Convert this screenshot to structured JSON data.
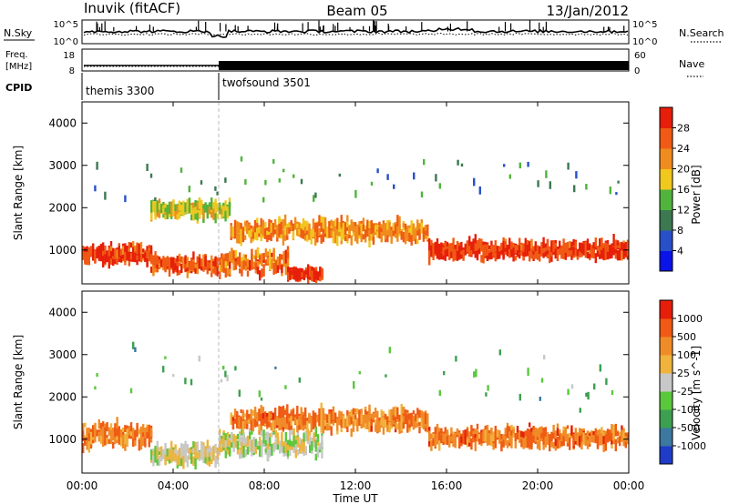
{
  "header": {
    "station": "Inuvik (fitACF)",
    "beam": "Beam 05",
    "date": "13/Jan/2012"
  },
  "sky_panel": {
    "left_label": "N.Sky",
    "right_label": "N.Search",
    "y_ticks": [
      "10^5",
      "10^0"
    ]
  },
  "freq_panel": {
    "left_label_line1": "Freq.",
    "left_label_line2": "[MHz]",
    "right_label": "Nave",
    "left_ticks": [
      "18",
      "8"
    ],
    "right_ticks": [
      "60",
      "0"
    ]
  },
  "cpid": {
    "label": "CPID",
    "segments": [
      {
        "name": "themis 3300",
        "start_hour": 0,
        "end_hour": 6
      },
      {
        "name": "twofsound 3501",
        "start_hour": 6,
        "end_hour": 24
      }
    ]
  },
  "time_axis": {
    "ticks": [
      "00:00",
      "04:00",
      "08:00",
      "12:00",
      "16:00",
      "20:00",
      "00:00"
    ],
    "label": "Time UT"
  },
  "range_axis": {
    "label": "Slant Range [km]",
    "ticks": [
      "1000",
      "2000",
      "3000",
      "4000"
    ]
  },
  "power_scale": {
    "label": "Power [dB]",
    "ticks": [
      "4",
      "8",
      "12",
      "16",
      "20",
      "24",
      "28"
    ],
    "colors": [
      "#0a14e6",
      "#2850c8",
      "#3c7850",
      "#50b43c",
      "#f0c81e",
      "#f08c1e",
      "#f05a14",
      "#e61e0a"
    ]
  },
  "velocity_scale": {
    "label": "Velocity [m s^-1]",
    "ticks": [
      "1000",
      "500",
      "100",
      "25",
      "-25",
      "-100",
      "-500",
      "-1000"
    ],
    "colors": [
      "#1e3cc8",
      "#3c78a0",
      "#3ca050",
      "#5ac83c",
      "#c8c8c8",
      "#f0b43c",
      "#f08c28",
      "#f05a14",
      "#e61e0a"
    ]
  },
  "chart_data": {
    "type": "heatmap",
    "x_range_hours": [
      0,
      24
    ],
    "y_range_km": [
      200,
      4500
    ],
    "power_bands": [
      {
        "start": 0.0,
        "end": 3.0,
        "center_km": 900,
        "width_km": 450,
        "level": 6.5
      },
      {
        "start": 3.0,
        "end": 6.0,
        "center_km": 650,
        "width_km": 350,
        "level": 6.2
      },
      {
        "start": 6.0,
        "end": 9.0,
        "center_km": 700,
        "width_km": 600,
        "level": 5.5
      },
      {
        "start": 9.0,
        "end": 10.5,
        "center_km": 420,
        "width_km": 250,
        "level": 6.8
      },
      {
        "start": 6.5,
        "end": 15.2,
        "center_km": 1450,
        "width_km": 550,
        "level": 5.2
      },
      {
        "start": 15.2,
        "end": 24.0,
        "center_km": 1000,
        "width_km": 450,
        "level": 6.6
      },
      {
        "start": 3.0,
        "end": 6.5,
        "center_km": 1950,
        "width_km": 400,
        "level": 3.8
      },
      {
        "start": 0.0,
        "end": 24.0,
        "center_km": 2600,
        "width_km": 1500,
        "level": 2.0
      }
    ],
    "velocity_bands": [
      {
        "start": 0.0,
        "end": 3.0,
        "center_km": 1100,
        "width_km": 600,
        "level": 6.2
      },
      {
        "start": 3.0,
        "end": 6.0,
        "center_km": 650,
        "width_km": 500,
        "level": 4.3
      },
      {
        "start": 6.0,
        "end": 10.5,
        "center_km": 900,
        "width_km": 700,
        "level": 4.0
      },
      {
        "start": 6.5,
        "end": 15.2,
        "center_km": 1450,
        "width_km": 550,
        "level": 6.4
      },
      {
        "start": 15.2,
        "end": 24.0,
        "center_km": 1050,
        "width_km": 500,
        "level": 6.5
      },
      {
        "start": 0.0,
        "end": 24.0,
        "center_km": 2500,
        "width_km": 1600,
        "level": 2.5
      }
    ],
    "nsky_baseline_log": 2.6,
    "freq_level_mhz": 10.5
  }
}
